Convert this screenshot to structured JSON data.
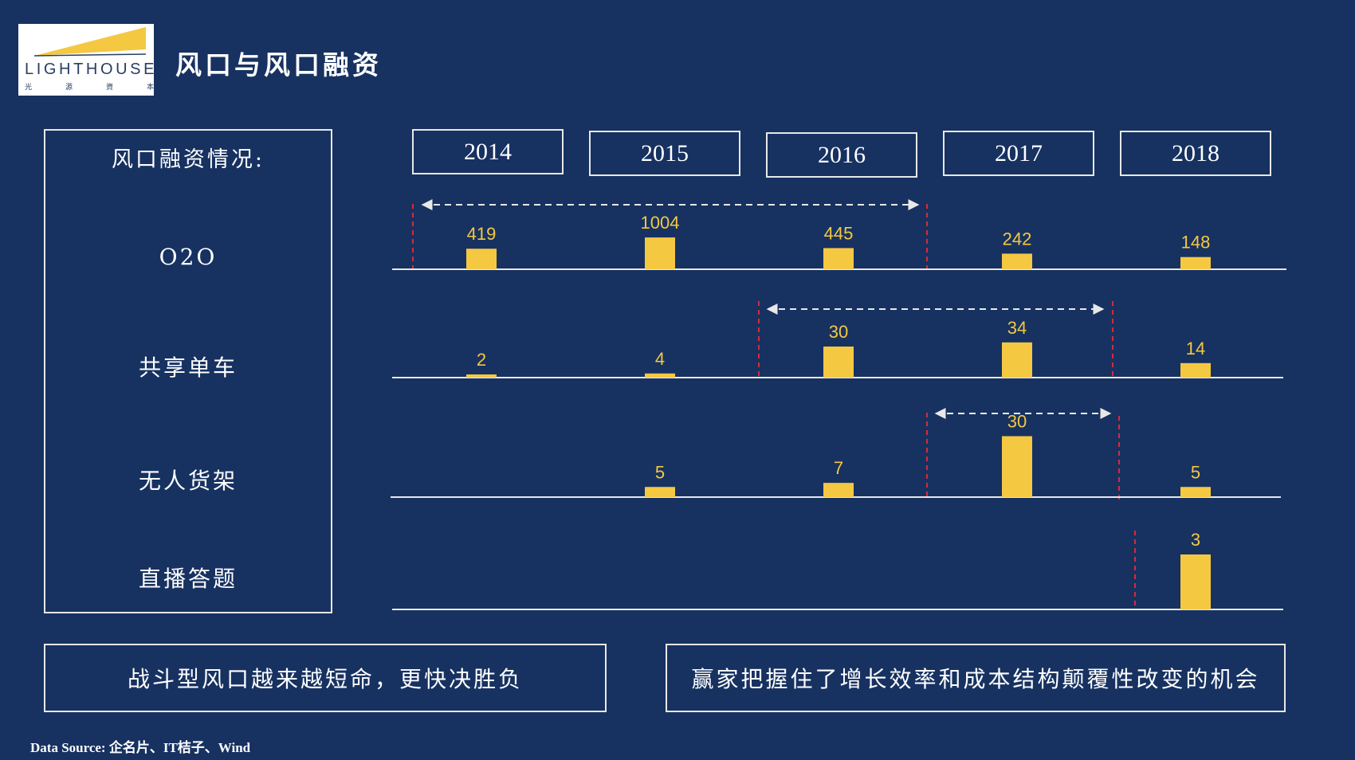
{
  "header": {
    "title": "风口与风口融资",
    "logo": {
      "name": "LIGHTHOUSE",
      "subtitle": [
        "光",
        "源",
        "資",
        "本"
      ]
    }
  },
  "panel": {
    "title": "风口融资情况:",
    "rows": [
      "O2O",
      "共享单车",
      "无人货架",
      "直播答题"
    ]
  },
  "chart_data": {
    "type": "bar",
    "categories": [
      "2014",
      "2015",
      "2016",
      "2017",
      "2018"
    ],
    "series": [
      {
        "name": "O2O",
        "values": [
          419,
          1004,
          445,
          242,
          148
        ]
      },
      {
        "name": "共享单车",
        "values": [
          2,
          4,
          30,
          34,
          14
        ]
      },
      {
        "name": "无人货架",
        "values": [
          null,
          5,
          7,
          30,
          5
        ]
      },
      {
        "name": "直播答题",
        "values": [
          null,
          null,
          null,
          null,
          3
        ]
      }
    ],
    "bar_color": "#f5c842",
    "grid": false
  },
  "conclusions": [
    "战斗型风口越来越短命，更快决胜负",
    "赢家把握住了增长效率和成本结构颠覆性改变的机会"
  ],
  "source": "Data Source: 企名片、IT桔子、Wind",
  "colors": {
    "background": "#173261",
    "bar": "#f5c842",
    "marker": "#d62b3a",
    "line": "#e8e8e8"
  }
}
